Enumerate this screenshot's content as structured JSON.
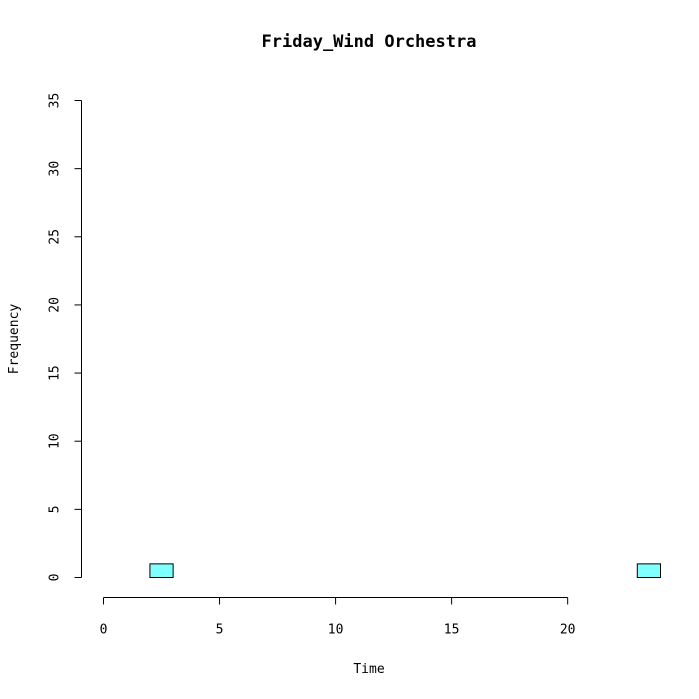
{
  "chart_data": {
    "type": "bar",
    "subtype": "histogram",
    "title": "Friday_Wind Orchestra",
    "xlabel": "Time",
    "ylabel": "Frequency",
    "xlim": [
      0,
      24
    ],
    "ylim": [
      0,
      35
    ],
    "x_ticks": [
      0,
      5,
      10,
      15,
      20
    ],
    "y_ticks": [
      0,
      5,
      10,
      15,
      20,
      25,
      30,
      35
    ],
    "bin_width": 1,
    "bins": [
      {
        "start": 0,
        "end": 1,
        "count": 0
      },
      {
        "start": 1,
        "end": 2,
        "count": 0
      },
      {
        "start": 2,
        "end": 3,
        "count": 1
      },
      {
        "start": 3,
        "end": 4,
        "count": 0
      },
      {
        "start": 4,
        "end": 5,
        "count": 0
      },
      {
        "start": 5,
        "end": 6,
        "count": 0
      },
      {
        "start": 6,
        "end": 7,
        "count": 0
      },
      {
        "start": 7,
        "end": 8,
        "count": 0
      },
      {
        "start": 8,
        "end": 9,
        "count": 0
      },
      {
        "start": 9,
        "end": 10,
        "count": 0
      },
      {
        "start": 10,
        "end": 11,
        "count": 0
      },
      {
        "start": 11,
        "end": 12,
        "count": 0
      },
      {
        "start": 12,
        "end": 13,
        "count": 0
      },
      {
        "start": 13,
        "end": 14,
        "count": 0
      },
      {
        "start": 14,
        "end": 15,
        "count": 0
      },
      {
        "start": 15,
        "end": 16,
        "count": 0
      },
      {
        "start": 16,
        "end": 17,
        "count": 0
      },
      {
        "start": 17,
        "end": 18,
        "count": 0
      },
      {
        "start": 18,
        "end": 19,
        "count": 0
      },
      {
        "start": 19,
        "end": 20,
        "count": 0
      },
      {
        "start": 20,
        "end": 21,
        "count": 0
      },
      {
        "start": 21,
        "end": 22,
        "count": 0
      },
      {
        "start": 22,
        "end": 23,
        "count": 0
      },
      {
        "start": 23,
        "end": 24,
        "count": 1
      }
    ],
    "bar_color": "#80ffff",
    "bar_border_color": "#000000",
    "grid": false,
    "legend": "none"
  }
}
